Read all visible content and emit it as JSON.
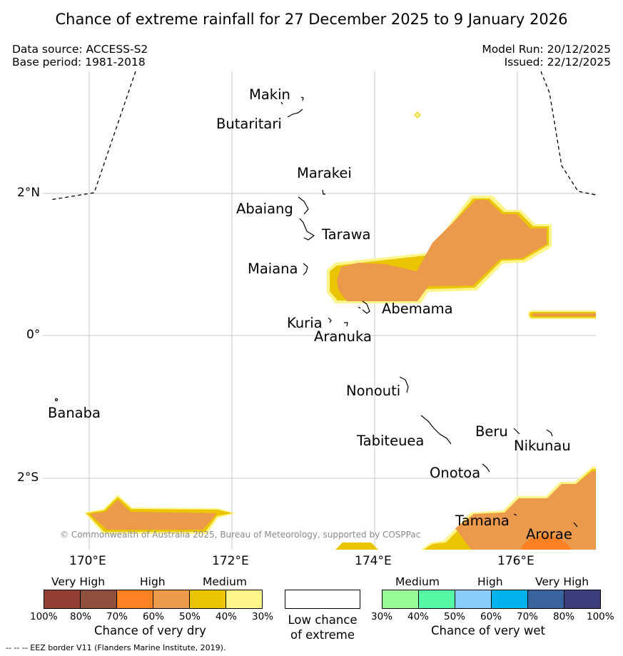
{
  "header": {
    "title": "Chance of extreme rainfall for 27 December 2025 to 9 January 2026",
    "data_source": "Data source: ACCESS-S2",
    "base_period": "Base period: 1981-2018",
    "model_run": "Model Run: 20/12/2025",
    "issued": "Issued: 22/12/2025"
  },
  "map": {
    "y_ticks": [
      "2°N",
      "0°",
      "2°S"
    ],
    "x_ticks": [
      "170°E",
      "172°E",
      "174°E",
      "176°E"
    ],
    "places": {
      "makin": "Makin",
      "butaritari": "Butaritari",
      "marakei": "Marakei",
      "abaiang": "Abaiang",
      "tarawa": "Tarawa",
      "maiana": "Maiana",
      "abemama": "Abemama",
      "kuria": "Kuria",
      "aranuka": "Aranuka",
      "nonouti": "Nonouti",
      "banaba": "Banaba",
      "tabiteuea": "Tabiteuea",
      "beru": "Beru",
      "nikunau": "Nikunau",
      "onotoa": "Onotoa",
      "tamana": "Tamana",
      "arorae": "Arorae"
    },
    "copyright": "© Commonwealth of Australia 2025, Bureau of Meteorology, supported by COSPPac"
  },
  "legend": {
    "dry": {
      "groups": [
        "Very High",
        "High",
        "Medium"
      ],
      "ticks": [
        "100%",
        "80%",
        "70%",
        "60%",
        "50%",
        "40%",
        "30%"
      ],
      "colors": [
        "#943f34",
        "#8e503d",
        "#fd8122",
        "#ea9a4a",
        "#ebc600",
        "#fdf58a"
      ],
      "caption": "Chance of very dry"
    },
    "low": {
      "line1": "Low chance",
      "line2": "of extreme"
    },
    "wet": {
      "groups": [
        "Medium",
        "High",
        "Very High"
      ],
      "ticks": [
        "30%",
        "40%",
        "50%",
        "60%",
        "70%",
        "80%",
        "100%"
      ],
      "colors": [
        "#97fb97",
        "#55f8a5",
        "#87cefa",
        "#00b3ef",
        "#3a64a0",
        "#3c3d7b"
      ],
      "caption": "Chance of very wet"
    },
    "footnote": "--  --  -- EEZ border V11 (Flanders Marine Institute, 2019)."
  }
}
